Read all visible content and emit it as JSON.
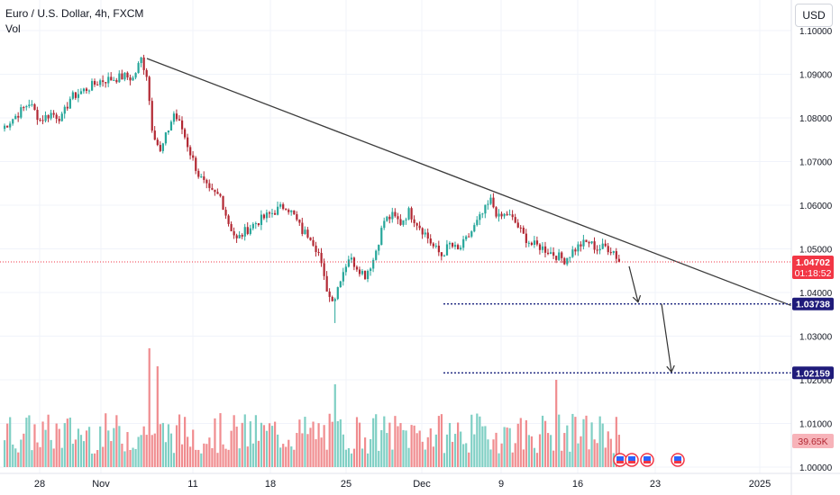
{
  "header": {
    "symbol_title": "Euro / U.S. Dollar, 4h, FXCM",
    "indicator_label": "Vol",
    "currency_button": "USD"
  },
  "colors": {
    "bull": "#26a69a",
    "bear": "#b22833",
    "vol_bull": "#7fcfc4",
    "vol_bear": "#f08c8f",
    "trendline": "#3d3d3d",
    "level_line": "#1a237e",
    "label_navy": "#1f1b7a",
    "price_red": "#f23645",
    "axis_text": "#131722"
  },
  "chart_data": {
    "type": "candlestick",
    "symbol": "EURUSD",
    "timeframe": "4h",
    "price_axis": {
      "ticks": [
        "1.10000",
        "1.09000",
        "1.08000",
        "1.07000",
        "1.06000",
        "1.05000",
        "1.04000",
        "1.03000",
        "1.02000",
        "1.01000",
        "1.00000"
      ],
      "range": [
        0.9975,
        1.1035
      ]
    },
    "time_axis": {
      "labels": [
        "28",
        "Nov",
        "11",
        "18",
        "25",
        "Dec",
        "9",
        "16",
        "23",
        "2025"
      ]
    },
    "last_price": {
      "value": "1.04702",
      "countdown": "01:18:52"
    },
    "levels": [
      {
        "price": 1.03738,
        "label": "1.03738"
      },
      {
        "price": 1.02159,
        "label": "1.02159"
      }
    ],
    "volume_label": "39.65K",
    "trendline": {
      "from": [
        0,
        1.0936
      ],
      "to": [
        1,
        1.037
      ]
    },
    "path_keypoints": [
      [
        0,
        1.0775
      ],
      [
        6,
        1.081
      ],
      [
        10,
        1.0835
      ],
      [
        14,
        1.0795
      ],
      [
        18,
        1.081
      ],
      [
        22,
        1.08
      ],
      [
        25,
        1.0845
      ],
      [
        29,
        1.086
      ],
      [
        32,
        1.087
      ],
      [
        36,
        1.0885
      ],
      [
        41,
        1.089
      ],
      [
        45,
        1.0895
      ],
      [
        48,
        1.089
      ],
      [
        51,
        1.0935
      ],
      [
        53,
        1.09
      ],
      [
        55,
        1.078
      ],
      [
        58,
        1.072
      ],
      [
        61,
        1.0775
      ],
      [
        63,
        1.081
      ],
      [
        66,
        1.0775
      ],
      [
        69,
        1.072
      ],
      [
        72,
        1.067
      ],
      [
        76,
        1.063
      ],
      [
        80,
        1.062
      ],
      [
        83,
        1.056
      ],
      [
        86,
        1.052
      ],
      [
        89,
        1.054
      ],
      [
        93,
        1.056
      ],
      [
        97,
        1.0575
      ],
      [
        101,
        1.059
      ],
      [
        104,
        1.06
      ],
      [
        107,
        1.0575
      ],
      [
        110,
        1.054
      ],
      [
        113,
        1.053
      ],
      [
        116,
        1.049
      ],
      [
        118,
        1.043
      ],
      [
        120,
        1.039
      ],
      [
        122,
        1.039
      ],
      [
        124,
        1.0435
      ],
      [
        127,
        1.048
      ],
      [
        130,
        1.046
      ],
      [
        133,
        1.044
      ],
      [
        136,
        1.0475
      ],
      [
        140,
        1.0565
      ],
      [
        143,
        1.0575
      ],
      [
        146,
        1.056
      ],
      [
        149,
        1.0585
      ],
      [
        152,
        1.056
      ],
      [
        155,
        1.0535
      ],
      [
        158,
        1.0505
      ],
      [
        161,
        1.0485
      ],
      [
        164,
        1.051
      ],
      [
        167,
        1.0495
      ],
      [
        170,
        1.052
      ],
      [
        173,
        1.055
      ],
      [
        176,
        1.058
      ],
      [
        179,
        1.061
      ],
      [
        182,
        1.057
      ],
      [
        185,
        1.058
      ],
      [
        188,
        1.056
      ],
      [
        191,
        1.053
      ],
      [
        194,
        1.051
      ],
      [
        197,
        1.0505
      ],
      [
        200,
        1.0495
      ],
      [
        203,
        1.0485
      ],
      [
        206,
        1.0475
      ],
      [
        209,
        1.0495
      ],
      [
        212,
        1.051
      ],
      [
        215,
        1.0515
      ],
      [
        218,
        1.05
      ],
      [
        221,
        1.0505
      ],
      [
        224,
        1.0495
      ],
      [
        226,
        1.047
      ]
    ],
    "projection_arrows": [
      {
        "from": [
          1.047
        ],
        "to": [
          1.0374
        ]
      },
      {
        "from": [
          1.0374
        ],
        "to": [
          1.0216
        ]
      }
    ],
    "event_markers": 4
  }
}
